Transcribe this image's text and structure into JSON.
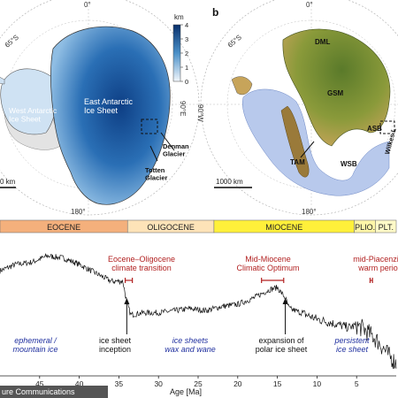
{
  "maps": {
    "panel_b_letter": "b",
    "top_lon": "0°",
    "bottom_lon": "180°",
    "lat_label": "65°S",
    "lon_right": "90°E",
    "lon_left": "90°W",
    "colorbar_unit": "km",
    "colorbar_ticks": [
      "4",
      "3",
      "2",
      "1",
      "0"
    ],
    "west_antarctic": "West Antarctic\nIce Sheet",
    "east_antarctic": "East Antarctic\nIce Sheet",
    "denman": "Denman\nGlacier",
    "totten": "Totten\nGlacier",
    "scale_a": "0 km",
    "scale_b": "1000 km",
    "region_labels": [
      "DML",
      "GSM",
      "ASB",
      "TAM",
      "WSB"
    ],
    "wilkes": "Wilkes L"
  },
  "timeline": {
    "epochs": [
      {
        "name": "EOCENE",
        "color": "#f4b07c"
      },
      {
        "name": "OLIGOCENE",
        "color": "#fde3b8"
      },
      {
        "name": "MIOCENE",
        "color": "#fff03a"
      },
      {
        "name": "PLIO.",
        "color": "#fff6a8"
      },
      {
        "name": "PLT.",
        "color": "#fffac8"
      }
    ],
    "events": [
      {
        "label": "Eocene–Oligocene\nclimate transition"
      },
      {
        "label": "Mid-Miocene\nClimatic Optimum"
      },
      {
        "label": "mid-Piacenzian\nwarm period"
      }
    ],
    "phases": [
      {
        "label": "ephemeral /\nmountain ice"
      },
      {
        "label": "ice sheets\nwax and wane"
      },
      {
        "label": "persistent\nice sheet"
      }
    ],
    "markers": [
      {
        "label": "ice sheet\ninception"
      },
      {
        "label": "expansion of\npolar ice sheet"
      }
    ],
    "credit": "ure Communications"
  },
  "chart_data": {
    "type": "line",
    "xlabel": "Age [Ma]",
    "ylabel": "",
    "xlim": [
      50,
      0
    ],
    "x_reversed": true,
    "xticks": [
      45,
      40,
      35,
      30,
      25,
      20,
      15,
      10,
      5
    ],
    "series": [
      {
        "x": [
          50,
          48,
          46,
          44,
          42,
          40,
          38,
          36,
          34.5,
          34,
          33.5,
          32,
          30,
          28,
          26,
          24,
          22,
          20,
          18,
          16,
          15,
          14,
          13.5,
          12,
          10,
          8,
          6,
          5,
          4,
          3,
          2,
          1,
          0
        ],
        "values": [
          2.2,
          2.35,
          2.4,
          2.55,
          2.5,
          2.35,
          2.15,
          1.95,
          1.95,
          1.45,
          1.15,
          1.2,
          1.2,
          1.25,
          1.3,
          1.25,
          1.35,
          1.4,
          1.55,
          1.75,
          1.8,
          1.55,
          1.3,
          1.2,
          1.05,
          0.95,
          0.85,
          0.9,
          0.8,
          0.65,
          0.45,
          0.2,
          0.0
        ]
      }
    ],
    "ylim": [
      -0.3,
      3.0
    ]
  }
}
